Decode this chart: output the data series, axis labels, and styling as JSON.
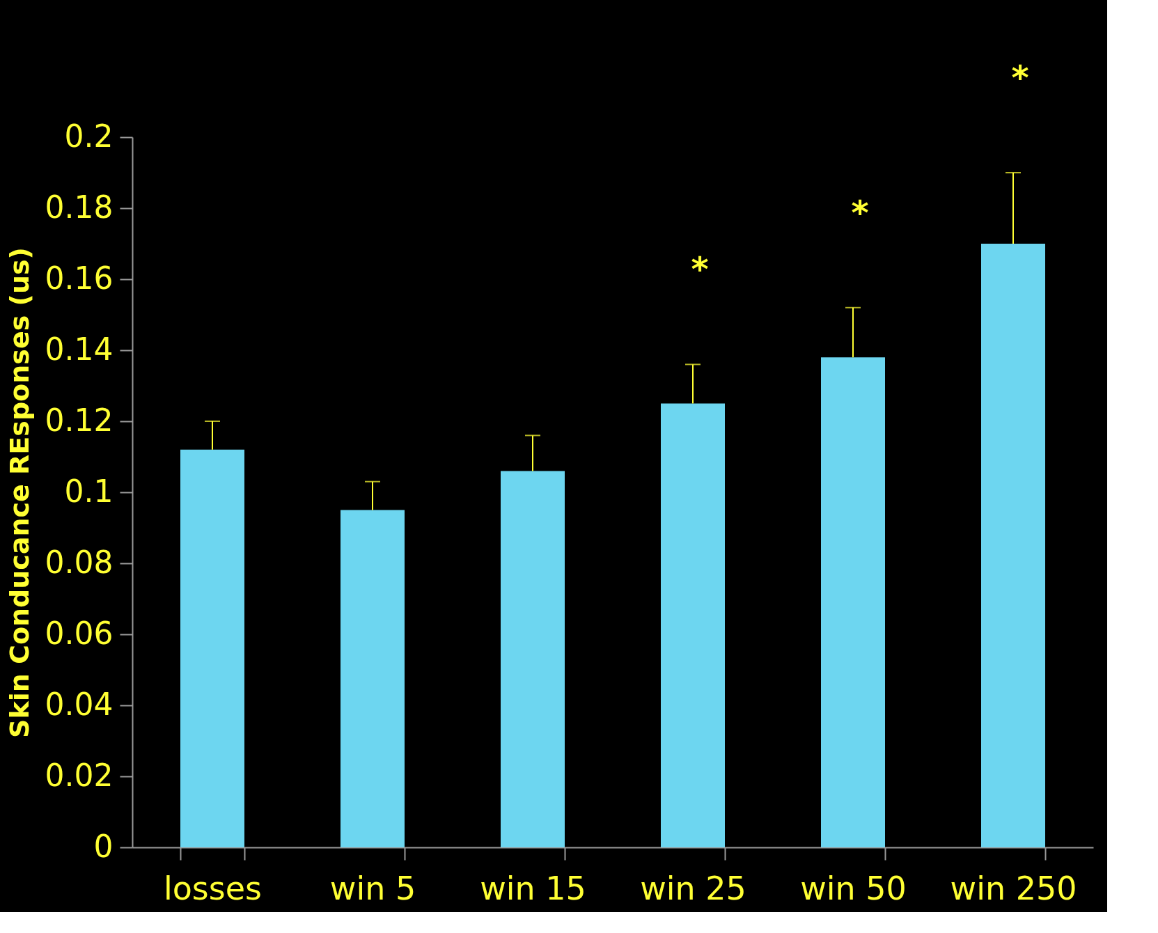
{
  "chart_data": {
    "type": "bar",
    "ylabel": "Skin Conducance REsponses (us)",
    "categories": [
      "losses",
      "win 5",
      "win 15",
      "win 25",
      "win 50",
      "win 250"
    ],
    "values": [
      0.112,
      0.095,
      0.106,
      0.125,
      0.138,
      0.17
    ],
    "errors": [
      [
        0.112,
        0.12
      ],
      [
        0.095,
        0.103
      ],
      [
        0.106,
        0.116
      ],
      [
        0.125,
        0.136
      ],
      [
        0.138,
        0.152
      ],
      [
        0.17,
        0.19
      ]
    ],
    "color": "#6dd6f0",
    "ylim": [
      0,
      0.2
    ],
    "yticks": [
      0,
      0.02,
      0.04,
      0.06,
      0.08,
      0.1,
      0.12,
      0.14,
      0.16,
      0.18,
      0.2
    ],
    "grid": false,
    "annotations": [
      "*",
      "*",
      "*"
    ]
  }
}
